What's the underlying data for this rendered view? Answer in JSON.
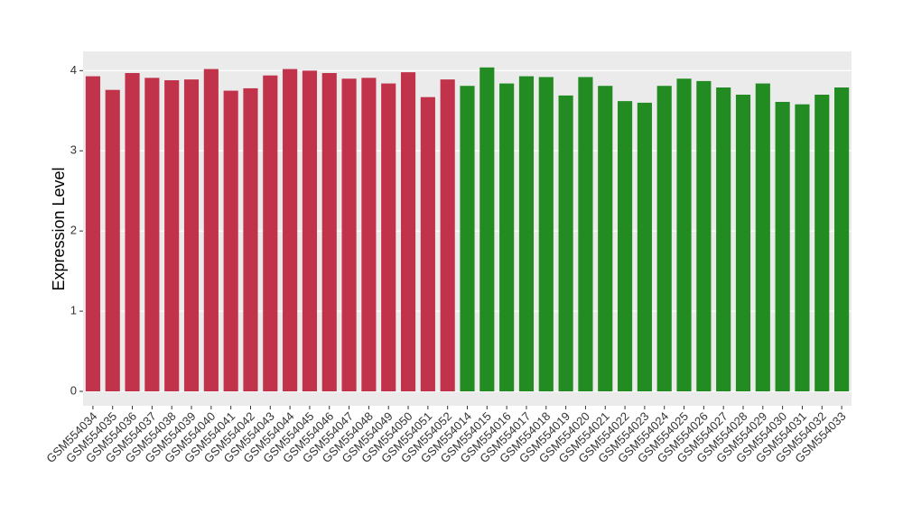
{
  "chart_data": {
    "type": "bar",
    "y_label": "Expression Level",
    "categories": [
      "GSM554034",
      "GSM554035",
      "GSM554036",
      "GSM554037",
      "GSM554038",
      "GSM554039",
      "GSM554040",
      "GSM554041",
      "GSM554042",
      "GSM554043",
      "GSM554044",
      "GSM554045",
      "GSM554046",
      "GSM554047",
      "GSM554048",
      "GSM554049",
      "GSM554050",
      "GSM554051",
      "GSM554052",
      "GSM554014",
      "GSM554015",
      "GSM554016",
      "GSM554017",
      "GSM554018",
      "GSM554019",
      "GSM554020",
      "GSM554021",
      "GSM554022",
      "GSM554023",
      "GSM554024",
      "GSM554025",
      "GSM554026",
      "GSM554027",
      "GSM554028",
      "GSM554029",
      "GSM554030",
      "GSM554031",
      "GSM554032",
      "GSM554033"
    ],
    "values": [
      3.93,
      3.76,
      3.97,
      3.91,
      3.88,
      3.89,
      4.02,
      3.75,
      3.78,
      3.94,
      4.02,
      4.0,
      3.97,
      3.9,
      3.91,
      3.84,
      3.98,
      3.67,
      3.89,
      3.81,
      4.04,
      3.84,
      3.93,
      3.92,
      3.69,
      3.92,
      3.81,
      3.62,
      3.6,
      3.81,
      3.9,
      3.87,
      3.79,
      3.7,
      3.84,
      3.61,
      3.58,
      3.7,
      3.79
    ],
    "colors": [
      "#c0334a",
      "#c0334a",
      "#c0334a",
      "#c0334a",
      "#c0334a",
      "#c0334a",
      "#c0334a",
      "#c0334a",
      "#c0334a",
      "#c0334a",
      "#c0334a",
      "#c0334a",
      "#c0334a",
      "#c0334a",
      "#c0334a",
      "#c0334a",
      "#c0334a",
      "#c0334a",
      "#c0334a",
      "#228b22",
      "#228b22",
      "#228b22",
      "#228b22",
      "#228b22",
      "#228b22",
      "#228b22",
      "#228b22",
      "#228b22",
      "#228b22",
      "#228b22",
      "#228b22",
      "#228b22",
      "#228b22",
      "#228b22",
      "#228b22",
      "#228b22",
      "#228b22",
      "#228b22",
      "#228b22"
    ],
    "ylim": [
      -0.18,
      4.24
    ],
    "yticks": [
      0,
      1,
      2,
      3,
      4
    ],
    "grid": true
  }
}
